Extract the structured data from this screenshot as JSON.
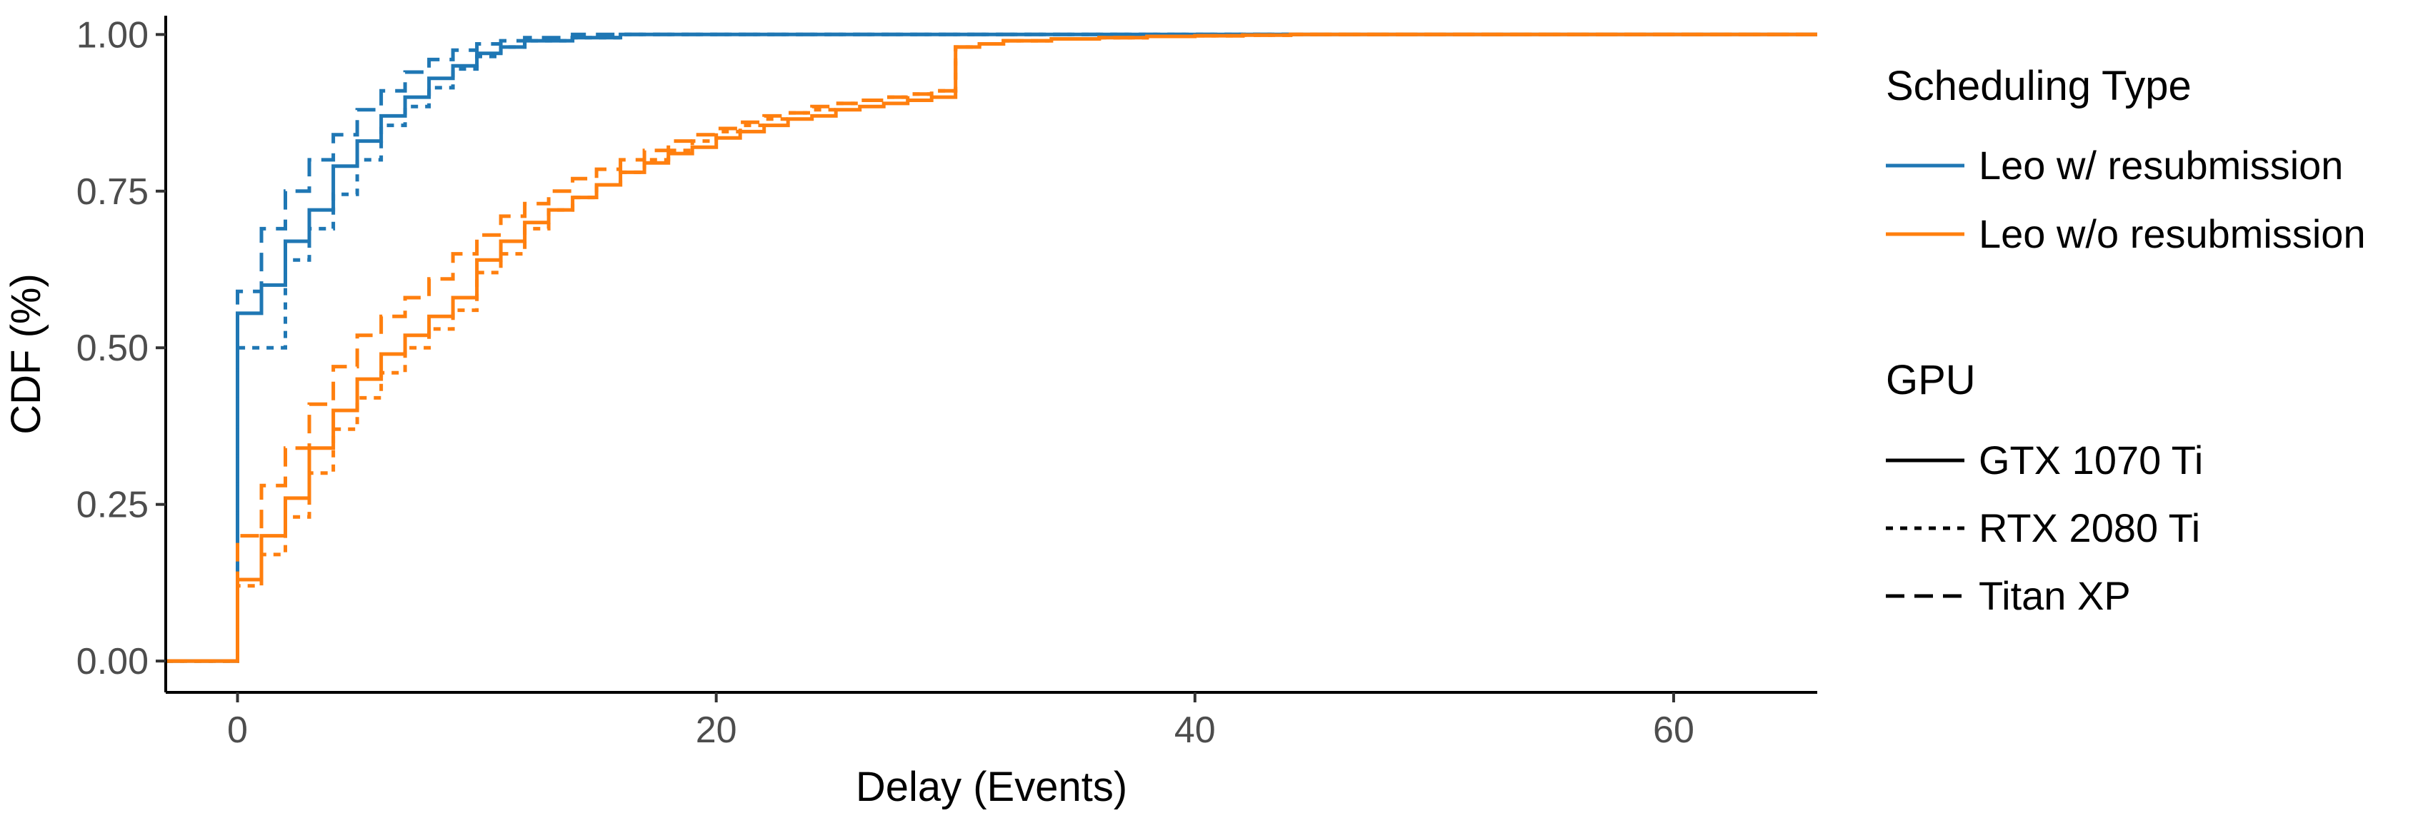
{
  "chart_data": {
    "type": "line",
    "step": true,
    "xlabel": "Delay (Events)",
    "ylabel": "CDF (%)",
    "xlim": [
      -3,
      66
    ],
    "ylim": [
      -0.05,
      1.03
    ],
    "x_ticks": [
      0,
      20,
      40,
      60
    ],
    "x_tick_labels": [
      "0",
      "20",
      "40",
      "60"
    ],
    "y_ticks": [
      0,
      0.25,
      0.5,
      0.75,
      1
    ],
    "y_tick_labels": [
      "0.00",
      "0.25",
      "0.50",
      "0.75",
      "1.00"
    ],
    "grid": false,
    "colors": {
      "leo_with": "#1f77b4",
      "leo_without": "#ff7f0e",
      "axis": "#000000"
    },
    "legends": [
      {
        "title": "Scheduling Type",
        "kind": "color",
        "entries": [
          {
            "label": "Leo w/ resubmission",
            "color": "#1f77b4"
          },
          {
            "label": "Leo w/o resubmission",
            "color": "#ff7f0e"
          }
        ]
      },
      {
        "title": "GPU",
        "kind": "linetype",
        "entries": [
          {
            "label": "GTX 1070 Ti",
            "dash": "solid"
          },
          {
            "label": "RTX 2080 Ti",
            "dash": "dotted"
          },
          {
            "label": "Titan XP",
            "dash": "dashed"
          }
        ]
      }
    ],
    "legend_position": "right",
    "series": [
      {
        "scheduling": "Leo w/ resubmission",
        "gpu": "GTX 1070 Ti",
        "color": "#1f77b4",
        "dash": "solid",
        "x": [
          -3,
          0,
          1,
          2,
          3,
          4,
          5,
          6,
          7,
          8,
          9,
          10,
          11,
          12,
          14,
          16,
          66
        ],
        "y": [
          0,
          0.555,
          0.6,
          0.67,
          0.72,
          0.79,
          0.83,
          0.87,
          0.9,
          0.93,
          0.95,
          0.97,
          0.98,
          0.99,
          0.995,
          1.0,
          1.0
        ]
      },
      {
        "scheduling": "Leo w/ resubmission",
        "gpu": "RTX 2080 Ti",
        "color": "#1f77b4",
        "dash": "dotted",
        "x": [
          -3,
          0,
          1,
          2,
          3,
          4,
          5,
          6,
          7,
          8,
          9,
          10,
          11,
          12,
          14,
          16,
          66
        ],
        "y": [
          0,
          0.5,
          0.5,
          0.64,
          0.69,
          0.745,
          0.8,
          0.855,
          0.885,
          0.915,
          0.945,
          0.965,
          0.98,
          0.99,
          0.995,
          1.0,
          1.0
        ]
      },
      {
        "scheduling": "Leo w/ resubmission",
        "gpu": "Titan XP",
        "color": "#1f77b4",
        "dash": "dashed",
        "x": [
          -3,
          0,
          1,
          2,
          3,
          4,
          5,
          6,
          7,
          8,
          9,
          10,
          11,
          12,
          14,
          16,
          66
        ],
        "y": [
          0,
          0.59,
          0.69,
          0.75,
          0.8,
          0.84,
          0.88,
          0.91,
          0.94,
          0.96,
          0.975,
          0.985,
          0.99,
          0.995,
          1.0,
          1.0,
          1.0
        ]
      },
      {
        "scheduling": "Leo w/o resubmission",
        "gpu": "GTX 1070 Ti",
        "color": "#ff7f0e",
        "dash": "solid",
        "x": [
          -3,
          0,
          1,
          2,
          3,
          4,
          5,
          6,
          7,
          8,
          9,
          10,
          11,
          12,
          13,
          14,
          15,
          16,
          17,
          18,
          19,
          20,
          21,
          22,
          23,
          24,
          25,
          26,
          27,
          28,
          29,
          30,
          31,
          32,
          34,
          36,
          38,
          40,
          42,
          44,
          66
        ],
        "y": [
          0,
          0.13,
          0.2,
          0.26,
          0.34,
          0.4,
          0.45,
          0.49,
          0.52,
          0.55,
          0.58,
          0.64,
          0.67,
          0.7,
          0.72,
          0.74,
          0.76,
          0.78,
          0.795,
          0.81,
          0.82,
          0.835,
          0.845,
          0.855,
          0.865,
          0.87,
          0.88,
          0.885,
          0.89,
          0.895,
          0.9,
          0.98,
          0.985,
          0.99,
          0.993,
          0.995,
          0.997,
          0.998,
          0.999,
          1.0,
          1.0
        ]
      },
      {
        "scheduling": "Leo w/o resubmission",
        "gpu": "RTX 2080 Ti",
        "color": "#ff7f0e",
        "dash": "dotted",
        "x": [
          -3,
          0,
          1,
          2,
          3,
          4,
          5,
          6,
          7,
          8,
          9,
          10,
          11,
          12,
          13,
          14,
          15,
          16,
          17,
          18,
          19,
          20,
          21,
          22,
          23,
          24,
          25,
          26,
          27,
          28,
          29,
          30,
          31,
          32,
          34,
          36,
          38,
          40,
          42,
          44,
          66
        ],
        "y": [
          0,
          0.12,
          0.17,
          0.23,
          0.3,
          0.37,
          0.42,
          0.46,
          0.5,
          0.53,
          0.56,
          0.62,
          0.65,
          0.69,
          0.72,
          0.74,
          0.76,
          0.78,
          0.8,
          0.815,
          0.83,
          0.845,
          0.855,
          0.865,
          0.875,
          0.88,
          0.89,
          0.895,
          0.9,
          0.905,
          0.91,
          0.98,
          0.985,
          0.99,
          0.993,
          0.995,
          0.997,
          0.998,
          0.999,
          1.0,
          1.0
        ]
      },
      {
        "scheduling": "Leo w/o resubmission",
        "gpu": "Titan XP",
        "color": "#ff7f0e",
        "dash": "dashed",
        "x": [
          -3,
          0,
          1,
          2,
          3,
          4,
          5,
          6,
          7,
          8,
          9,
          10,
          11,
          12,
          13,
          14,
          15,
          16,
          17,
          18,
          19,
          20,
          21,
          22,
          23,
          24,
          25,
          26,
          27,
          28,
          29,
          30,
          31,
          32,
          34,
          36,
          38,
          40,
          42,
          44,
          66
        ],
        "y": [
          0,
          0.2,
          0.28,
          0.34,
          0.41,
          0.47,
          0.52,
          0.55,
          0.58,
          0.61,
          0.65,
          0.68,
          0.71,
          0.73,
          0.75,
          0.77,
          0.785,
          0.8,
          0.815,
          0.83,
          0.84,
          0.85,
          0.86,
          0.87,
          0.875,
          0.885,
          0.89,
          0.895,
          0.9,
          0.905,
          0.91,
          0.98,
          0.985,
          0.99,
          0.993,
          0.995,
          0.997,
          0.998,
          0.999,
          1.0,
          1.0
        ]
      }
    ]
  }
}
